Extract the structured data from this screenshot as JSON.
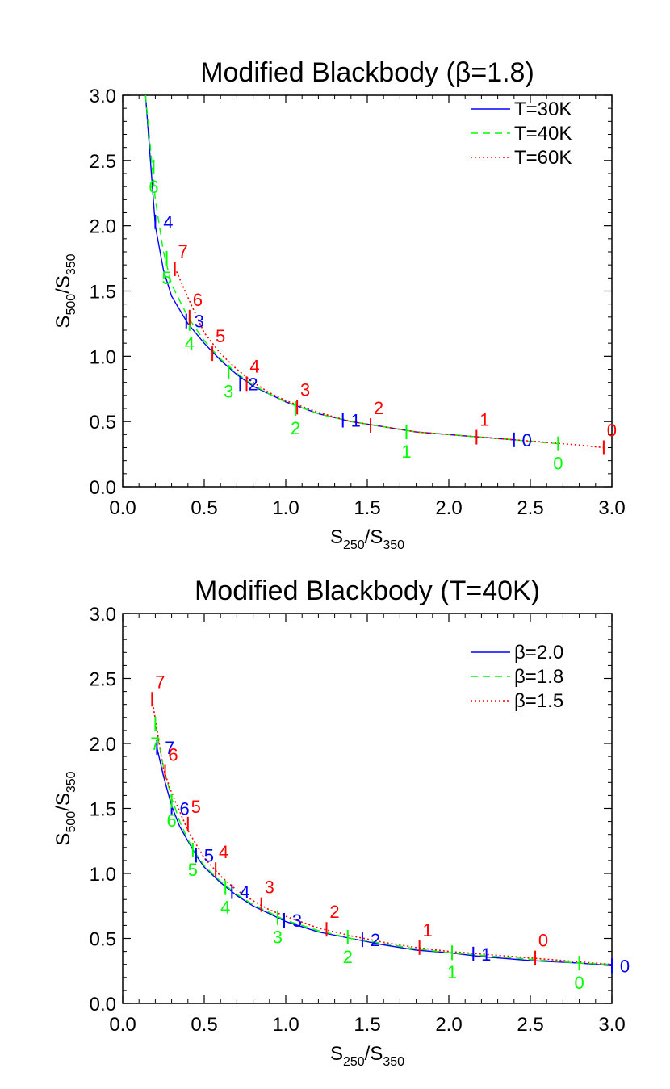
{
  "chart_data": [
    {
      "type": "line",
      "title": "Modified Blackbody (β=1.8)",
      "xlabel": {
        "main": "S",
        "sub1": "250",
        "mid": "/S",
        "sub2": "350"
      },
      "ylabel": {
        "main": "S",
        "sub1": "500",
        "mid": "/S",
        "sub2": "350"
      },
      "xlim": [
        0,
        3
      ],
      "ylim": [
        0,
        3
      ],
      "xticks": [
        "0.0",
        "0.5",
        "1.0",
        "1.5",
        "2.0",
        "2.5",
        "3.0"
      ],
      "yticks": [
        "0.0",
        "0.5",
        "1.0",
        "1.5",
        "2.0",
        "2.5",
        "3.0"
      ],
      "legend_position": "top-right",
      "series": [
        {
          "name": "T=30K",
          "color": "#0000ff",
          "dash": "solid",
          "curve": [
            [
              0.14,
              3.0
            ],
            [
              0.2,
              2.0
            ],
            [
              0.25,
              1.66
            ],
            [
              0.3,
              1.46
            ],
            [
              0.4,
              1.25
            ],
            [
              0.5,
              1.1
            ],
            [
              0.6,
              0.97
            ],
            [
              0.7,
              0.86
            ],
            [
              0.8,
              0.77
            ],
            [
              0.9,
              0.71
            ],
            [
              1.0,
              0.65
            ],
            [
              1.2,
              0.56
            ],
            [
              1.4,
              0.5
            ],
            [
              1.6,
              0.46
            ],
            [
              1.8,
              0.42
            ],
            [
              2.0,
              0.4
            ],
            [
              2.2,
              0.38
            ],
            [
              2.4,
              0.36
            ]
          ],
          "markers": [
            {
              "label": "0",
              "x": 2.4,
              "y": 0.36
            },
            {
              "label": "1",
              "x": 1.35,
              "y": 0.51
            },
            {
              "label": "2",
              "x": 0.72,
              "y": 0.79
            },
            {
              "label": "3",
              "x": 0.39,
              "y": 1.27
            },
            {
              "label": "4",
              "x": 0.2,
              "y": 2.03
            }
          ]
        },
        {
          "name": "T=40K",
          "color": "#00ff00",
          "dash": "dashed",
          "curve": [
            [
              0.14,
              3.0
            ],
            [
              0.2,
              2.2
            ],
            [
              0.25,
              1.8
            ],
            [
              0.3,
              1.55
            ],
            [
              0.4,
              1.3
            ],
            [
              0.5,
              1.12
            ],
            [
              0.6,
              0.98
            ],
            [
              0.7,
              0.87
            ],
            [
              0.8,
              0.78
            ],
            [
              0.9,
              0.71
            ],
            [
              1.0,
              0.65
            ],
            [
              1.2,
              0.56
            ],
            [
              1.4,
              0.5
            ],
            [
              1.6,
              0.46
            ],
            [
              1.8,
              0.42
            ],
            [
              2.0,
              0.4
            ],
            [
              2.2,
              0.38
            ],
            [
              2.4,
              0.36
            ],
            [
              2.67,
              0.33
            ]
          ],
          "markers": [
            {
              "label": "0",
              "x": 2.67,
              "y": 0.33
            },
            {
              "label": "1",
              "x": 1.74,
              "y": 0.42
            },
            {
              "label": "2",
              "x": 1.06,
              "y": 0.6
            },
            {
              "label": "3",
              "x": 0.65,
              "y": 0.88
            },
            {
              "label": "4",
              "x": 0.41,
              "y": 1.25
            },
            {
              "label": "5",
              "x": 0.27,
              "y": 1.75
            },
            {
              "label": "6",
              "x": 0.19,
              "y": 2.45
            }
          ]
        },
        {
          "name": "T=60K",
          "color": "#ff0000",
          "dash": "dotted",
          "curve": [
            [
              0.33,
              1.65
            ],
            [
              0.4,
              1.45
            ],
            [
              0.5,
              1.18
            ],
            [
              0.6,
              1.02
            ],
            [
              0.7,
              0.9
            ],
            [
              0.8,
              0.8
            ],
            [
              0.9,
              0.72
            ],
            [
              1.0,
              0.66
            ],
            [
              1.2,
              0.57
            ],
            [
              1.4,
              0.5
            ],
            [
              1.6,
              0.46
            ],
            [
              1.8,
              0.42
            ],
            [
              2.0,
              0.4
            ],
            [
              2.2,
              0.38
            ],
            [
              2.4,
              0.36
            ],
            [
              2.6,
              0.34
            ],
            [
              2.8,
              0.32
            ],
            [
              2.95,
              0.3
            ]
          ],
          "markers": [
            {
              "label": "0",
              "x": 2.95,
              "y": 0.3
            },
            {
              "label": "1",
              "x": 2.17,
              "y": 0.38
            },
            {
              "label": "2",
              "x": 1.52,
              "y": 0.47
            },
            {
              "label": "3",
              "x": 1.07,
              "y": 0.61
            },
            {
              "label": "4",
              "x": 0.76,
              "y": 0.79
            },
            {
              "label": "5",
              "x": 0.55,
              "y": 1.02
            },
            {
              "label": "6",
              "x": 0.41,
              "y": 1.3
            },
            {
              "label": "7",
              "x": 0.32,
              "y": 1.67
            }
          ]
        }
      ]
    },
    {
      "type": "line",
      "title": "Modified Blackbody (T=40K)",
      "xlabel": {
        "main": "S",
        "sub1": "250",
        "mid": "/S",
        "sub2": "350"
      },
      "ylabel": {
        "main": "S",
        "sub1": "500",
        "mid": "/S",
        "sub2": "350"
      },
      "xlim": [
        0,
        3
      ],
      "ylim": [
        0,
        3
      ],
      "xticks": [
        "0.0",
        "0.5",
        "1.0",
        "1.5",
        "2.0",
        "2.5",
        "3.0"
      ],
      "yticks": [
        "0.0",
        "0.5",
        "1.0",
        "1.5",
        "2.0",
        "2.5",
        "3.0"
      ],
      "legend_position": "top-right",
      "series": [
        {
          "name": "β=2.0",
          "color": "#0000ff",
          "dash": "solid",
          "curve": [
            [
              0.21,
              1.97
            ],
            [
              0.25,
              1.75
            ],
            [
              0.3,
              1.52
            ],
            [
              0.35,
              1.36
            ],
            [
              0.4,
              1.25
            ],
            [
              0.45,
              1.14
            ],
            [
              0.5,
              1.05
            ],
            [
              0.6,
              0.93
            ],
            [
              0.7,
              0.83
            ],
            [
              0.8,
              0.75
            ],
            [
              0.9,
              0.69
            ],
            [
              1.0,
              0.63
            ],
            [
              1.2,
              0.55
            ],
            [
              1.4,
              0.5
            ],
            [
              1.6,
              0.45
            ],
            [
              1.8,
              0.41
            ],
            [
              2.0,
              0.39
            ],
            [
              2.2,
              0.36
            ],
            [
              2.5,
              0.33
            ],
            [
              2.8,
              0.31
            ],
            [
              3.0,
              0.29
            ]
          ],
          "markers": [
            {
              "label": "0",
              "x": 3.0,
              "y": 0.29
            },
            {
              "label": "1",
              "x": 2.15,
              "y": 0.38
            },
            {
              "label": "2",
              "x": 1.47,
              "y": 0.49
            },
            {
              "label": "3",
              "x": 0.99,
              "y": 0.64
            },
            {
              "label": "4",
              "x": 0.67,
              "y": 0.86
            },
            {
              "label": "5",
              "x": 0.45,
              "y": 1.14
            },
            {
              "label": "6",
              "x": 0.3,
              "y": 1.5
            },
            {
              "label": "7",
              "x": 0.21,
              "y": 1.97
            }
          ]
        },
        {
          "name": "β=1.8",
          "color": "#00ff00",
          "dash": "dashed",
          "curve": [
            [
              0.2,
              2.15
            ],
            [
              0.25,
              1.82
            ],
            [
              0.3,
              1.58
            ],
            [
              0.35,
              1.4
            ],
            [
              0.4,
              1.26
            ],
            [
              0.45,
              1.15
            ],
            [
              0.5,
              1.06
            ],
            [
              0.6,
              0.94
            ],
            [
              0.7,
              0.84
            ],
            [
              0.8,
              0.76
            ],
            [
              0.9,
              0.7
            ],
            [
              1.0,
              0.64
            ],
            [
              1.2,
              0.56
            ],
            [
              1.4,
              0.5
            ],
            [
              1.6,
              0.46
            ],
            [
              1.8,
              0.42
            ],
            [
              2.0,
              0.39
            ],
            [
              2.2,
              0.37
            ],
            [
              2.5,
              0.34
            ],
            [
              2.8,
              0.31
            ],
            [
              3.0,
              0.3
            ]
          ],
          "markers": [
            {
              "label": "0",
              "x": 2.8,
              "y": 0.31
            },
            {
              "label": "1",
              "x": 2.02,
              "y": 0.39
            },
            {
              "label": "2",
              "x": 1.38,
              "y": 0.51
            },
            {
              "label": "3",
              "x": 0.95,
              "y": 0.66
            },
            {
              "label": "4",
              "x": 0.63,
              "y": 0.89
            },
            {
              "label": "5",
              "x": 0.43,
              "y": 1.18
            },
            {
              "label": "6",
              "x": 0.3,
              "y": 1.56
            },
            {
              "label": "7",
              "x": 0.2,
              "y": 2.15
            }
          ]
        },
        {
          "name": "β=1.5",
          "color": "#ff0000",
          "dash": "dotted",
          "curve": [
            [
              0.18,
              2.34
            ],
            [
              0.25,
              1.8
            ],
            [
              0.3,
              1.62
            ],
            [
              0.4,
              1.33
            ],
            [
              0.5,
              1.12
            ],
            [
              0.6,
              0.98
            ],
            [
              0.7,
              0.87
            ],
            [
              0.8,
              0.79
            ],
            [
              0.9,
              0.72
            ],
            [
              1.0,
              0.67
            ],
            [
              1.2,
              0.58
            ],
            [
              1.4,
              0.52
            ],
            [
              1.6,
              0.47
            ],
            [
              1.8,
              0.43
            ],
            [
              2.0,
              0.4
            ],
            [
              2.2,
              0.38
            ],
            [
              2.5,
              0.35
            ],
            [
              2.8,
              0.32
            ],
            [
              3.0,
              0.3
            ]
          ],
          "markers": [
            {
              "label": "0",
              "x": 2.53,
              "y": 0.35
            },
            {
              "label": "1",
              "x": 1.82,
              "y": 0.43
            },
            {
              "label": "2",
              "x": 1.25,
              "y": 0.57
            },
            {
              "label": "3",
              "x": 0.85,
              "y": 0.76
            },
            {
              "label": "4",
              "x": 0.57,
              "y": 1.03
            },
            {
              "label": "5",
              "x": 0.4,
              "y": 1.38
            },
            {
              "label": "6",
              "x": 0.26,
              "y": 1.78
            },
            {
              "label": "7",
              "x": 0.18,
              "y": 2.34
            }
          ]
        }
      ]
    }
  ]
}
